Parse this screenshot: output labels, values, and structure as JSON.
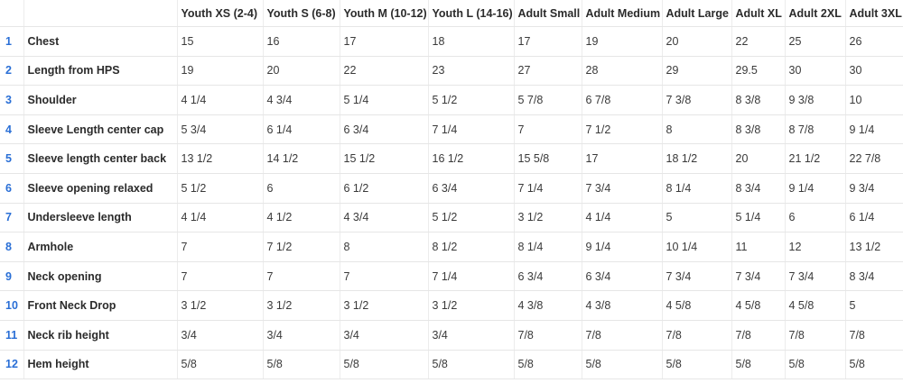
{
  "table": {
    "headers": [
      "",
      "",
      "Youth XS (2-4)",
      "Youth S (6-8)",
      "Youth M (10-12)",
      "Youth L (14-16)",
      "Adult Small",
      "Adult Medium",
      "Adult Large",
      "Adult XL",
      "Adult 2XL",
      "Adult 3XL"
    ],
    "rows": [
      {
        "num": "1",
        "label": "Chest",
        "values": [
          "15",
          "16",
          "17",
          "18",
          "17",
          "19",
          "20",
          "22",
          "25",
          "26"
        ]
      },
      {
        "num": "2",
        "label": "Length from HPS",
        "values": [
          "19",
          "20",
          "22",
          "23",
          "27",
          "28",
          "29",
          "29.5",
          "30",
          "30"
        ]
      },
      {
        "num": "3",
        "label": "Shoulder",
        "values": [
          "4 1/4",
          "4 3/4",
          "5 1/4",
          "5 1/2",
          "5 7/8",
          "6 7/8",
          "7 3/8",
          "8 3/8",
          "9 3/8",
          "10"
        ]
      },
      {
        "num": "4",
        "label": "Sleeve Length center cap",
        "values": [
          "5 3/4",
          "6 1/4",
          "6 3/4",
          "7 1/4",
          "7",
          "7 1/2",
          "8",
          "8 3/8",
          "8 7/8",
          "9 1/4"
        ]
      },
      {
        "num": "5",
        "label": "Sleeve length center back",
        "values": [
          "13 1/2",
          "14 1/2",
          "15 1/2",
          "16 1/2",
          "15 5/8",
          "17",
          "18 1/2",
          "20",
          "21 1/2",
          "22 7/8"
        ]
      },
      {
        "num": "6",
        "label": "Sleeve opening relaxed",
        "values": [
          "5 1/2",
          "6",
          "6 1/2",
          "6 3/4",
          "7 1/4",
          "7 3/4",
          "8 1/4",
          "8 3/4",
          "9 1/4",
          "9 3/4"
        ]
      },
      {
        "num": "7",
        "label": "Undersleeve length",
        "values": [
          "4 1/4",
          "4 1/2",
          "4 3/4",
          "5 1/2",
          "3 1/2",
          "4 1/4",
          "5",
          "5 1/4",
          "6",
          "6 1/4"
        ]
      },
      {
        "num": "8",
        "label": "Armhole",
        "values": [
          "7",
          "7 1/2",
          "8",
          "8 1/2",
          "8 1/4",
          "9 1/4",
          "10 1/4",
          "11",
          "12",
          "13 1/2"
        ]
      },
      {
        "num": "9",
        "label": "Neck opening",
        "values": [
          "7",
          "7",
          "7",
          "7 1/4",
          "6 3/4",
          "6 3/4",
          "7 3/4",
          "7 3/4",
          "7 3/4",
          "8 3/4"
        ]
      },
      {
        "num": "10",
        "label": "Front Neck Drop",
        "values": [
          "3 1/2",
          "3 1/2",
          "3 1/2",
          "3 1/2",
          "4 3/8",
          "4 3/8",
          "4 5/8",
          "4 5/8",
          "4 5/8",
          "5"
        ]
      },
      {
        "num": "11",
        "label": "Neck rib height",
        "values": [
          "3/4",
          "3/4",
          "3/4",
          "3/4",
          "7/8",
          "7/8",
          "7/8",
          "7/8",
          "7/8",
          "7/8"
        ]
      },
      {
        "num": "12",
        "label": "Hem height",
        "values": [
          "5/8",
          "5/8",
          "5/8",
          "5/8",
          "5/8",
          "5/8",
          "5/8",
          "5/8",
          "5/8",
          "5/8"
        ]
      }
    ]
  },
  "colors": {
    "row_number": "#2a6fd6",
    "grid_line": "#e6e6e6",
    "text": "#2b2b2b"
  }
}
